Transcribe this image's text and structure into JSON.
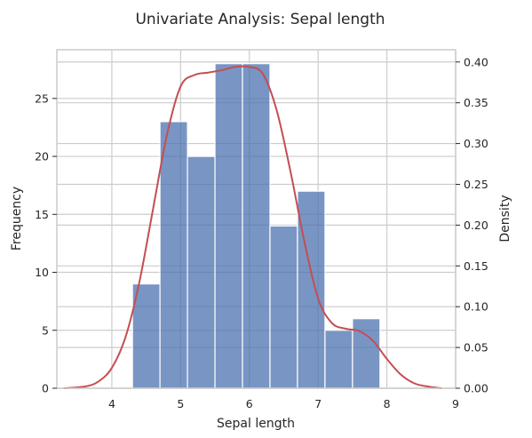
{
  "chart_data": {
    "type": "bar",
    "title": "Univariate Analysis: Sepal length",
    "xlabel": "Sepal length",
    "ylabel": "Frequency",
    "y2label": "Density",
    "xlim": [
      3.2,
      9.0
    ],
    "ylim": [
      0,
      29.2
    ],
    "y2lim": [
      0,
      0.415
    ],
    "xticks": [
      4,
      5,
      6,
      7,
      8,
      9
    ],
    "yticks": [
      0,
      5,
      10,
      15,
      20,
      25
    ],
    "y2ticks": [
      "0.00",
      "0.05",
      "0.10",
      "0.15",
      "0.20",
      "0.25",
      "0.30",
      "0.35",
      "0.40"
    ],
    "grid": true,
    "bar_color": "#4c72b0",
    "kde_color": "#c44e52",
    "histogram": {
      "bin_edges": [
        4.3,
        4.7,
        5.1,
        5.5,
        5.9,
        6.3,
        6.7,
        7.1,
        7.5,
        7.9
      ],
      "counts": [
        9,
        23,
        20,
        28,
        28,
        14,
        17,
        5,
        6
      ]
    },
    "kde": {
      "x": [
        3.3,
        3.6,
        3.8,
        4.0,
        4.2,
        4.4,
        4.6,
        4.8,
        5.0,
        5.2,
        5.4,
        5.6,
        5.8,
        6.0,
        6.2,
        6.4,
        6.6,
        6.8,
        7.0,
        7.2,
        7.4,
        7.6,
        7.8,
        8.0,
        8.2,
        8.4,
        8.6,
        8.8
      ],
      "y": [
        0.0,
        0.002,
        0.008,
        0.025,
        0.063,
        0.13,
        0.22,
        0.31,
        0.37,
        0.384,
        0.387,
        0.39,
        0.394,
        0.394,
        0.385,
        0.34,
        0.265,
        0.18,
        0.11,
        0.08,
        0.073,
        0.07,
        0.058,
        0.036,
        0.017,
        0.006,
        0.002,
        0.0
      ]
    }
  }
}
